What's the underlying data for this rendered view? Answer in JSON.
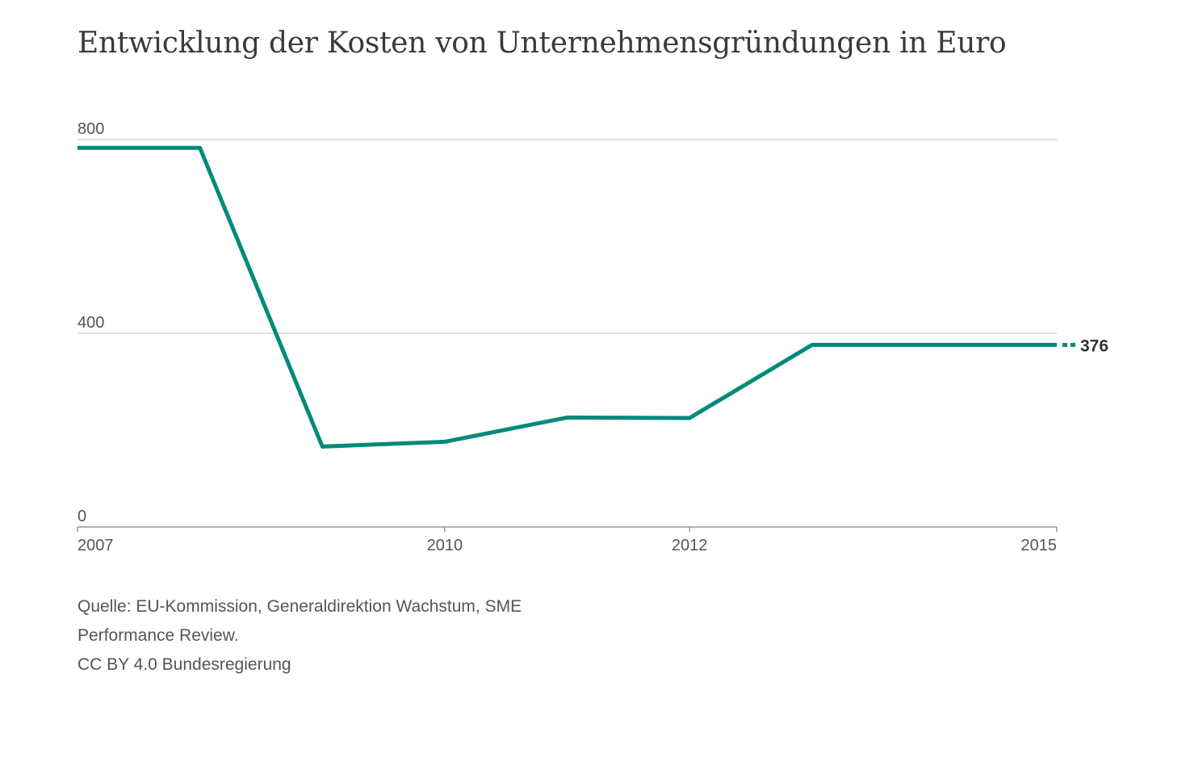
{
  "chart_data": {
    "type": "line",
    "title": "Entwicklung der Kosten von Unternehmensgründungen in Euro",
    "xlabel": "",
    "ylabel": "",
    "x": [
      2007,
      2008,
      2009,
      2010,
      2011,
      2012,
      2013,
      2014,
      2015
    ],
    "x_tick_labels": [
      "2007",
      "2010",
      "2012",
      "2015"
    ],
    "x_ticks": [
      2007,
      2010,
      2012,
      2015
    ],
    "xlim": [
      2007,
      2015
    ],
    "y_ticks": [
      0,
      400,
      800
    ],
    "y_tick_labels": [
      "0",
      "400",
      "800"
    ],
    "ylim": [
      0,
      800
    ],
    "grid": true,
    "series": [
      {
        "values": [
          783,
          783,
          166,
          176,
          226,
          225,
          376,
          376,
          376
        ],
        "color": "#008a7a"
      }
    ],
    "end_label": "376"
  },
  "source": {
    "lines": [
      "Quelle: EU-Kommission, Generaldirektion Wachstum, SME",
      "Performance Review.",
      "CC BY 4.0 Bundesregierung"
    ]
  },
  "colors": {
    "line": "#008a7a",
    "grid": "#cccccc",
    "axis": "#999999",
    "text": "#555555"
  }
}
